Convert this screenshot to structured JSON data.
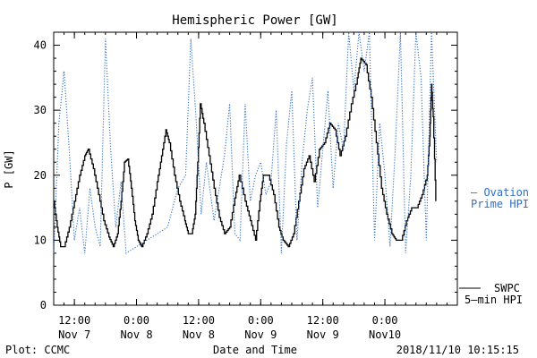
{
  "chart_data": {
    "type": "line",
    "title": "Hemispheric Power [GW]",
    "xlabel": "Date and Time",
    "ylabel": "P [GW]",
    "ylim": [
      0,
      42
    ],
    "y_ticks": [
      0,
      10,
      20,
      30,
      40
    ],
    "x_range": [
      "2018-11-07 08:00",
      "2018-11-10 14:00"
    ],
    "x_ticks": [
      {
        "t": "2018-11-07 12:00",
        "time": "12:00",
        "date": "Nov 7"
      },
      {
        "t": "2018-11-08 00:00",
        "time": "0:00",
        "date": "Nov 8"
      },
      {
        "t": "2018-11-08 12:00",
        "time": "12:00",
        "date": "Nov 8"
      },
      {
        "t": "2018-11-09 00:00",
        "time": "0:00",
        "date": "Nov 9"
      },
      {
        "t": "2018-11-09 12:00",
        "time": "12:00",
        "date": "Nov 9"
      },
      {
        "t": "2018-11-10 00:00",
        "time": "0:00",
        "date": "Nov10"
      }
    ],
    "grid": false,
    "series": [
      {
        "name": "SWPC 5-min HPI",
        "color": "#000000",
        "style": "solid-step",
        "points": [
          [
            "2018-11-07 08:00",
            16
          ],
          [
            "2018-11-07 08:40",
            12
          ],
          [
            "2018-11-07 09:20",
            9
          ],
          [
            "2018-11-07 10:00",
            9
          ],
          [
            "2018-11-07 11:00",
            12
          ],
          [
            "2018-11-07 12:00",
            16
          ],
          [
            "2018-11-07 13:00",
            20
          ],
          [
            "2018-11-07 14:00",
            23
          ],
          [
            "2018-11-07 14:40",
            24
          ],
          [
            "2018-11-07 15:40",
            21
          ],
          [
            "2018-11-07 16:40",
            17
          ],
          [
            "2018-11-07 17:40",
            13
          ],
          [
            "2018-11-07 18:40",
            10.5
          ],
          [
            "2018-11-07 19:30",
            9
          ],
          [
            "2018-11-07 20:20",
            11
          ],
          [
            "2018-11-07 21:00",
            16
          ],
          [
            "2018-11-07 21:40",
            22
          ],
          [
            "2018-11-07 22:20",
            22.5
          ],
          [
            "2018-11-07 23:00",
            18
          ],
          [
            "2018-11-07 23:40",
            13
          ],
          [
            "2018-11-08 00:20",
            10
          ],
          [
            "2018-11-08 01:00",
            9
          ],
          [
            "2018-11-08 02:00",
            11
          ],
          [
            "2018-11-08 03:00",
            14
          ],
          [
            "2018-11-08 04:00",
            19
          ],
          [
            "2018-11-08 04:50",
            23
          ],
          [
            "2018-11-08 05:40",
            27
          ],
          [
            "2018-11-08 06:20",
            25
          ],
          [
            "2018-11-08 07:20",
            20
          ],
          [
            "2018-11-08 08:20",
            16
          ],
          [
            "2018-11-08 09:20",
            13
          ],
          [
            "2018-11-08 10:00",
            11
          ],
          [
            "2018-11-08 10:40",
            11
          ],
          [
            "2018-11-08 11:20",
            14
          ],
          [
            "2018-11-08 11:50",
            22
          ],
          [
            "2018-11-08 12:20",
            31
          ],
          [
            "2018-11-08 13:00",
            28
          ],
          [
            "2018-11-08 14:00",
            23
          ],
          [
            "2018-11-08 15:00",
            18
          ],
          [
            "2018-11-08 16:00",
            13.5
          ],
          [
            "2018-11-08 17:00",
            11
          ],
          [
            "2018-11-08 18:00",
            12
          ],
          [
            "2018-11-08 19:00",
            16.5
          ],
          [
            "2018-11-08 19:50",
            20
          ],
          [
            "2018-11-08 21:00",
            16
          ],
          [
            "2018-11-08 22:00",
            13
          ],
          [
            "2018-11-08 23:00",
            10
          ],
          [
            "2018-11-08 23:50",
            16
          ],
          [
            "2018-11-09 00:30",
            20
          ],
          [
            "2018-11-09 01:30",
            20
          ],
          [
            "2018-11-09 02:30",
            17
          ],
          [
            "2018-11-09 03:30",
            12
          ],
          [
            "2018-11-09 04:20",
            10
          ],
          [
            "2018-11-09 05:20",
            9
          ],
          [
            "2018-11-09 06:20",
            11
          ],
          [
            "2018-11-09 07:20",
            16
          ],
          [
            "2018-11-09 08:20",
            21
          ],
          [
            "2018-11-09 09:20",
            23
          ],
          [
            "2018-11-09 10:20",
            19
          ],
          [
            "2018-11-09 11:20",
            24
          ],
          [
            "2018-11-09 12:20",
            25
          ],
          [
            "2018-11-09 13:20",
            28
          ],
          [
            "2018-11-09 14:20",
            27
          ],
          [
            "2018-11-09 15:20",
            23
          ],
          [
            "2018-11-09 16:20",
            26
          ],
          [
            "2018-11-09 17:30",
            31
          ],
          [
            "2018-11-09 18:40",
            35
          ],
          [
            "2018-11-09 19:20",
            38
          ],
          [
            "2018-11-09 20:20",
            37
          ],
          [
            "2018-11-09 21:20",
            32
          ],
          [
            "2018-11-09 22:20",
            25
          ],
          [
            "2018-11-09 23:20",
            18
          ],
          [
            "2018-11-10 00:20",
            14
          ],
          [
            "2018-11-10 01:20",
            11
          ],
          [
            "2018-11-10 02:10",
            10
          ],
          [
            "2018-11-10 03:10",
            10
          ],
          [
            "2018-11-10 04:10",
            13
          ],
          [
            "2018-11-10 05:10",
            15
          ],
          [
            "2018-11-10 06:10",
            15
          ],
          [
            "2018-11-10 07:10",
            17
          ],
          [
            "2018-11-10 08:10",
            20
          ],
          [
            "2018-11-10 08:40",
            26
          ],
          [
            "2018-11-10 09:00",
            34
          ],
          [
            "2018-11-10 09:20",
            29
          ],
          [
            "2018-11-10 09:50",
            16
          ]
        ]
      },
      {
        "name": "Ovation Prime HPI",
        "color": "#2f6fc8",
        "style": "dotted",
        "points": [
          [
            "2018-11-07 08:00",
            8
          ],
          [
            "2018-11-07 09:00",
            28
          ],
          [
            "2018-11-07 10:00",
            36
          ],
          [
            "2018-11-07 11:00",
            24
          ],
          [
            "2018-11-07 12:00",
            10
          ],
          [
            "2018-11-07 13:00",
            15
          ],
          [
            "2018-11-07 14:00",
            8
          ],
          [
            "2018-11-07 15:00",
            18
          ],
          [
            "2018-11-07 16:00",
            12
          ],
          [
            "2018-11-07 17:00",
            9
          ],
          [
            "2018-11-07 18:00",
            41
          ],
          [
            "2018-11-07 19:00",
            24
          ],
          [
            "2018-11-07 20:00",
            12
          ],
          [
            "2018-11-07 21:00",
            19
          ],
          [
            "2018-11-07 22:00",
            8
          ],
          [
            "2018-11-08 02:00",
            10
          ],
          [
            "2018-11-08 06:00",
            12
          ],
          [
            "2018-11-08 08:00",
            18
          ],
          [
            "2018-11-08 09:30",
            20
          ],
          [
            "2018-11-08 10:30",
            41
          ],
          [
            "2018-11-08 11:30",
            29
          ],
          [
            "2018-11-08 12:30",
            14
          ],
          [
            "2018-11-08 13:30",
            22
          ],
          [
            "2018-11-08 15:00",
            13
          ],
          [
            "2018-11-08 17:00",
            23
          ],
          [
            "2018-11-08 18:00",
            31
          ],
          [
            "2018-11-08 19:00",
            11
          ],
          [
            "2018-11-08 20:00",
            10
          ],
          [
            "2018-11-08 21:00",
            31
          ],
          [
            "2018-11-08 22:00",
            16
          ],
          [
            "2018-11-08 23:00",
            20
          ],
          [
            "2018-11-09 00:00",
            22
          ],
          [
            "2018-11-09 01:00",
            17
          ],
          [
            "2018-11-09 02:00",
            19
          ],
          [
            "2018-11-09 03:00",
            30
          ],
          [
            "2018-11-09 04:00",
            8
          ],
          [
            "2018-11-09 05:00",
            25
          ],
          [
            "2018-11-09 06:00",
            33
          ],
          [
            "2018-11-09 07:00",
            10
          ],
          [
            "2018-11-09 08:00",
            22
          ],
          [
            "2018-11-09 09:00",
            30
          ],
          [
            "2018-11-09 10:00",
            35
          ],
          [
            "2018-11-09 11:00",
            15
          ],
          [
            "2018-11-09 12:00",
            24
          ],
          [
            "2018-11-09 13:00",
            33
          ],
          [
            "2018-11-09 14:00",
            18
          ],
          [
            "2018-11-09 15:00",
            28
          ],
          [
            "2018-11-09 16:00",
            24
          ],
          [
            "2018-11-09 17:00",
            42
          ],
          [
            "2018-11-09 18:00",
            33
          ],
          [
            "2018-11-09 19:00",
            42
          ],
          [
            "2018-11-09 20:00",
            36
          ],
          [
            "2018-11-09 21:00",
            42
          ],
          [
            "2018-11-09 22:00",
            10
          ],
          [
            "2018-11-09 23:00",
            28
          ],
          [
            "2018-11-10 00:00",
            20
          ],
          [
            "2018-11-10 01:00",
            9
          ],
          [
            "2018-11-10 02:00",
            24
          ],
          [
            "2018-11-10 03:00",
            42
          ],
          [
            "2018-11-10 04:00",
            8
          ],
          [
            "2018-11-10 05:00",
            20
          ],
          [
            "2018-11-10 06:00",
            42
          ],
          [
            "2018-11-10 07:00",
            35
          ],
          [
            "2018-11-10 08:00",
            10
          ],
          [
            "2018-11-10 09:00",
            42
          ],
          [
            "2018-11-10 10:00",
            22
          ]
        ]
      }
    ]
  },
  "legend": {
    "ovation_line1": "– Ovation",
    "ovation_line2": "Prime HPI",
    "swpc_line1": "SWPC",
    "swpc_line2": "5–min HPI"
  },
  "footer": {
    "plot_credit": "Plot: CCMC",
    "timestamp": "2018/11/10 10:15:15"
  }
}
